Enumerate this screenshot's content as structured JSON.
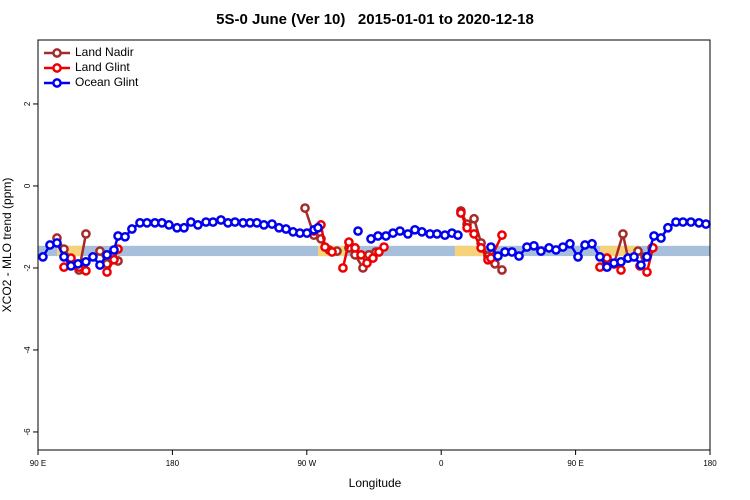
{
  "chart_data": {
    "type": "line",
    "title": "5S-0 June (Ver 10)   2015-01-01 to 2020-12-18",
    "xlabel": "Longitude",
    "ylabel": "XCO2 - MLO trend (ppm)",
    "xlim": [
      90,
      540
    ],
    "ylim": [
      -6.44,
      3.56
    ],
    "xticks": [
      {
        "value": 90,
        "label": "90 E"
      },
      180,
      {
        "value": 270,
        "label": "90 W"
      },
      {
        "value": 360,
        "label": "0"
      },
      {
        "value": 450,
        "label": "90 E"
      },
      {
        "value": 540,
        "label": "180"
      }
    ],
    "yticks": [
      -6,
      -4,
      -2,
      0,
      2
    ],
    "legend": "top-left",
    "shaded_regions": [
      {
        "x": [
          90,
          540
        ],
        "y": [
          -1.71,
          -1.46
        ],
        "color": "#a8bfdc"
      },
      {
        "x": [
          102.7,
          119.5
        ],
        "y": [
          -1.71,
          -1.46
        ],
        "color": "#f6d27a"
      },
      {
        "x": [
          277.5,
          295.6
        ],
        "y": [
          -1.71,
          -1.46
        ],
        "color": "#f6d27a"
      },
      {
        "x": [
          369.2,
          389.3
        ],
        "y": [
          -1.71,
          -1.46
        ],
        "color": "#f6d27a"
      },
      {
        "x": [
          466.3,
          493.1
        ],
        "y": [
          -1.71,
          -1.46
        ],
        "color": "#f6d27a"
      }
    ],
    "series": [
      {
        "name": "Land Nadir",
        "color": "#a52a2a",
        "x": [
          102.7,
          107.4,
          117.5,
          122.1,
          null,
          131.5,
          136.2,
          143.6,
          null,
          268.8,
          274.8,
          279.5,
          284.9,
          290.2,
          null,
          298.2,
          302.3,
          307.6,
          311.6,
          316.3,
          null,
          373.2,
          377.3,
          382.0,
          386.7,
          391.3,
          396.0,
          400.7,
          null,
          471.0,
          475.7,
          481.7,
          485.1,
          null,
          491.8,
          496.5,
          501.2
        ],
        "values": [
          -1.27,
          -1.54,
          -2.05,
          -1.17,
          null,
          -1.59,
          -1.9,
          -1.83,
          null,
          -0.54,
          -1.2,
          -1.29,
          -1.56,
          -1.59,
          null,
          -1.51,
          -1.68,
          -2.0,
          -1.68,
          -1.61,
          null,
          -0.61,
          -0.93,
          -0.8,
          -1.39,
          -1.71,
          -1.9,
          -2.05,
          null,
          -1.76,
          -1.9,
          -1.17,
          -1.76,
          null,
          -1.59,
          -1.73,
          -1.51
        ]
      },
      {
        "name": "Land Glint",
        "color": "#ee0000",
        "x": [
          107.4,
          112.1,
          117.5,
          122.1,
          null,
          136.2,
          140.9,
          143.6,
          null,
          274.8,
          279.5,
          282.2,
          286.9,
          null,
          294.2,
          298.2,
          302.3,
          306.3,
          310.3,
          314.3,
          318.3,
          321.7,
          null,
          373.2,
          377.3,
          382.0,
          386.7,
          391.3,
          393.3,
          400.7,
          null,
          466.3,
          471.0,
          475.7,
          480.4,
          null,
          493.1,
          497.8,
          501.8
        ],
        "values": [
          -1.98,
          -1.76,
          -1.98,
          -2.07,
          null,
          -2.1,
          -1.8,
          -1.54,
          null,
          -1.1,
          -0.95,
          -1.49,
          -1.61,
          null,
          -2.0,
          -1.37,
          -1.51,
          -1.68,
          -1.88,
          -1.76,
          -1.61,
          -1.49,
          null,
          -0.66,
          -1.02,
          -1.17,
          -1.51,
          -1.8,
          -1.76,
          -1.2,
          null,
          -1.98,
          -1.76,
          -1.9,
          -2.05,
          null,
          -1.95,
          -2.1,
          -1.51
        ]
      },
      {
        "name": "Ocean Glint",
        "color": "#0000ee",
        "x": [
          93.3,
          98.0,
          102.7,
          107.4,
          112.1,
          116.8,
          122.1,
          126.8,
          131.5,
          136.2,
          140.9,
          143.6,
          148.3,
          152.9,
          158.3,
          163.0,
          168.3,
          173.0,
          177.7,
          183.1,
          187.8,
          192.4,
          197.1,
          202.5,
          207.2,
          212.5,
          217.2,
          221.9,
          227.3,
          232.0,
          236.6,
          241.3,
          246.7,
          251.4,
          256.1,
          260.8,
          265.4,
          270.1,
          274.8,
          277.5,
          null,
          304.3,
          null,
          313.0,
          317.7,
          323.0,
          327.7,
          332.4,
          337.7,
          342.4,
          347.1,
          352.5,
          357.2,
          362.5,
          367.2,
          371.2,
          null,
          393.3,
          398.0,
          402.7,
          407.4,
          412.1,
          417.4,
          422.1,
          426.8,
          432.2,
          436.9,
          441.5,
          446.2,
          451.6,
          456.3,
          461.0,
          466.3,
          471.0,
          475.7,
          480.4,
          485.1,
          489.1,
          493.8,
          497.8,
          502.5,
          507.2,
          511.8,
          517.2,
          521.9,
          527.2,
          532.6,
          537.3
        ],
        "values": [
          -1.73,
          -1.44,
          -1.39,
          -1.73,
          -1.95,
          -1.9,
          -1.85,
          -1.73,
          -1.93,
          -1.68,
          -1.56,
          -1.22,
          -1.24,
          -1.05,
          -0.9,
          -0.9,
          -0.9,
          -0.9,
          -0.95,
          -1.02,
          -1.02,
          -0.88,
          -0.95,
          -0.88,
          -0.88,
          -0.83,
          -0.9,
          -0.88,
          -0.9,
          -0.9,
          -0.9,
          -0.95,
          -0.93,
          -1.02,
          -1.05,
          -1.12,
          -1.15,
          -1.15,
          -1.07,
          -1.02,
          null,
          -1.1,
          null,
          -1.29,
          -1.22,
          -1.22,
          -1.15,
          -1.1,
          -1.17,
          -1.07,
          -1.12,
          -1.17,
          -1.17,
          -1.2,
          -1.15,
          -1.2,
          null,
          -1.49,
          -1.71,
          -1.61,
          -1.61,
          -1.71,
          -1.49,
          -1.46,
          -1.59,
          -1.51,
          -1.56,
          -1.49,
          -1.41,
          -1.73,
          -1.44,
          -1.41,
          -1.73,
          -1.98,
          -1.88,
          -1.85,
          -1.76,
          -1.73,
          -1.93,
          -1.73,
          -1.22,
          -1.27,
          -1.02,
          -0.88,
          -0.88,
          -0.88,
          -0.9,
          -0.93
        ]
      }
    ]
  }
}
